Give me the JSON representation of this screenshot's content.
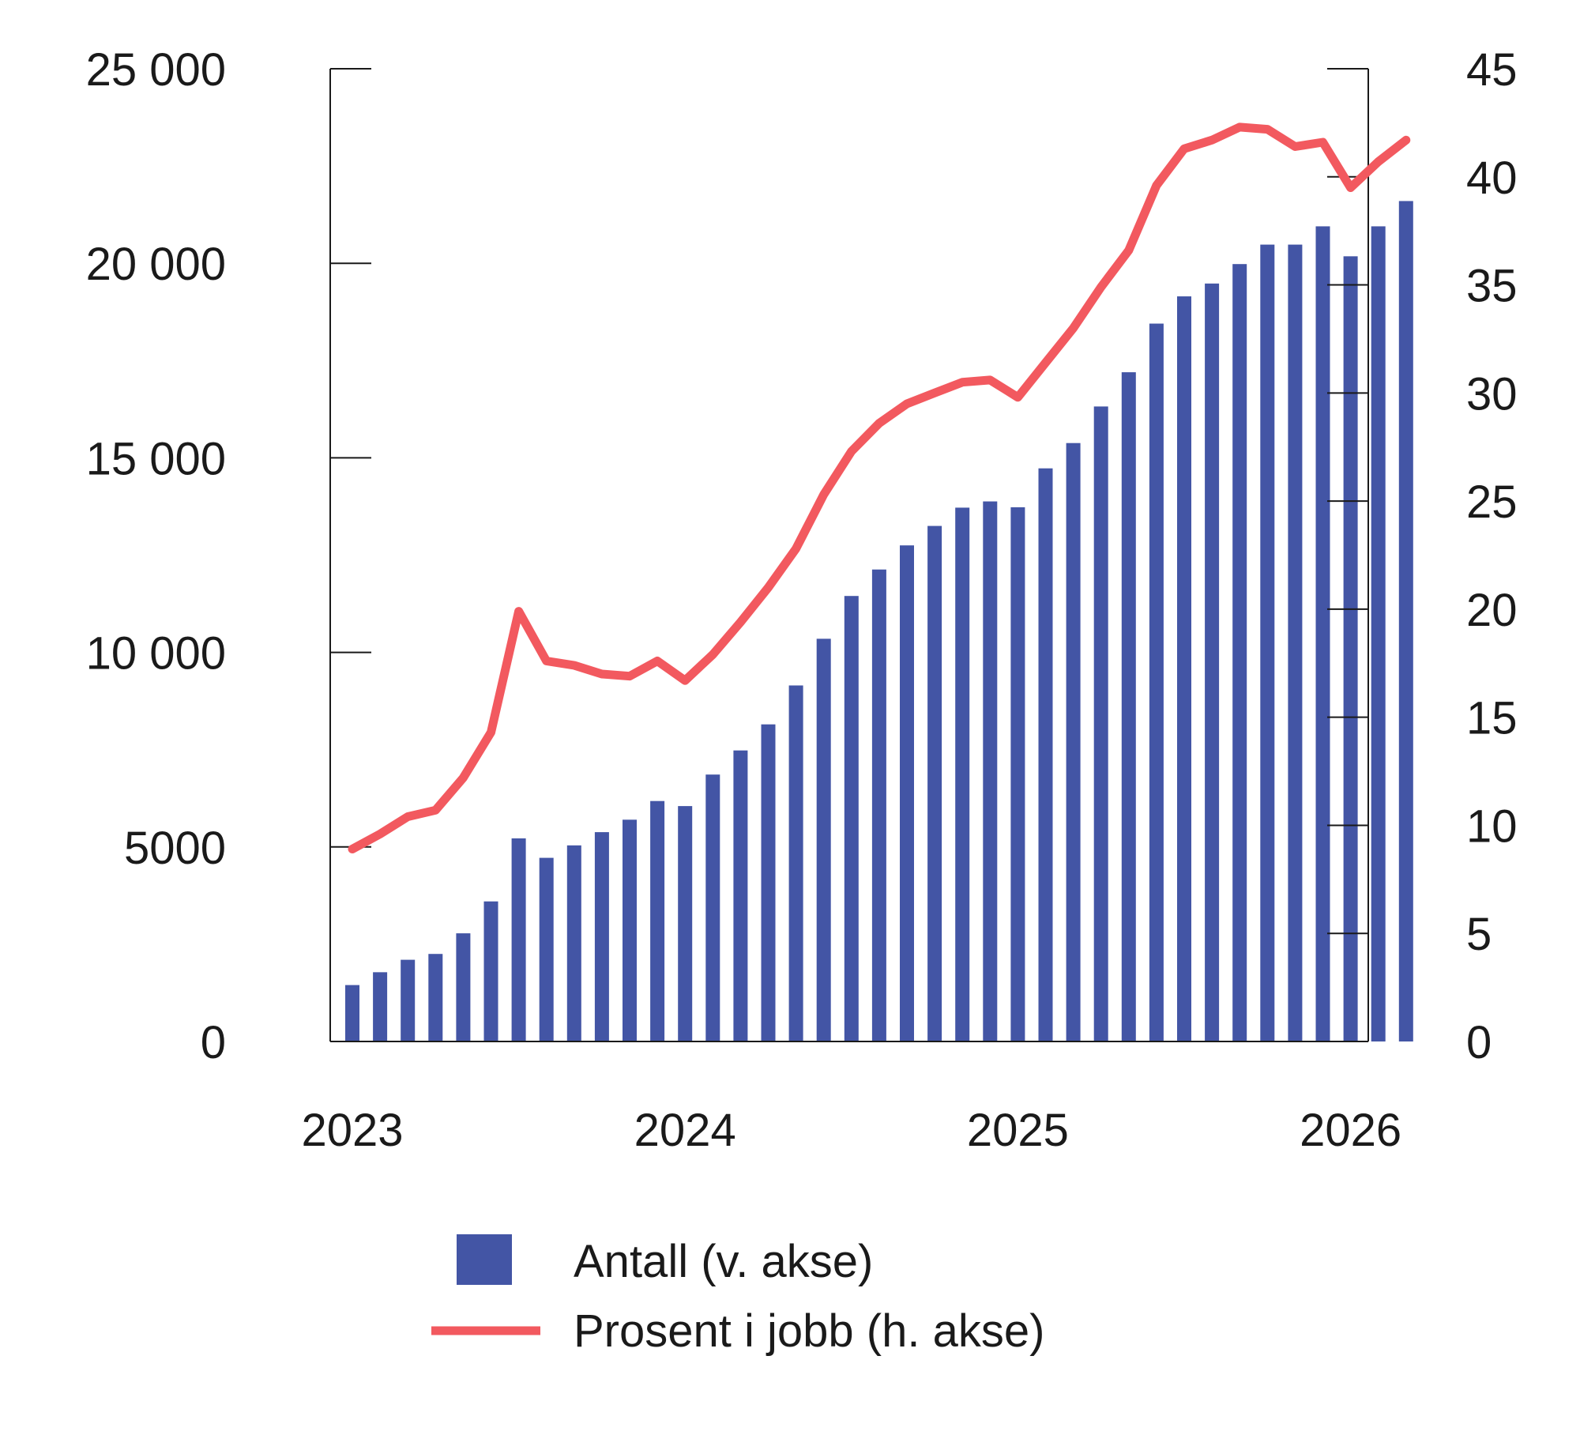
{
  "chart_data": {
    "type": "bar+line",
    "title": "",
    "x_tick_labels": [
      "2023",
      "2024",
      "2025",
      "2026"
    ],
    "left_axis": {
      "range": [
        0,
        25000
      ],
      "ticks": [
        0,
        5000,
        10000,
        15000,
        20000,
        25000
      ],
      "tick_labels": [
        "0",
        "5000",
        "10 000",
        "15 000",
        "20 000",
        "25 000"
      ]
    },
    "right_axis": {
      "range": [
        0,
        45
      ],
      "ticks": [
        0,
        5,
        10,
        15,
        20,
        25,
        30,
        35,
        40,
        45
      ],
      "tick_labels": [
        "0",
        "5",
        "10",
        "15",
        "20",
        "25",
        "30",
        "35",
        "40",
        "45"
      ]
    },
    "x": [
      "2023-01",
      "2023-02",
      "2023-03",
      "2023-04",
      "2023-05",
      "2023-06",
      "2023-07",
      "2023-08",
      "2023-09",
      "2023-10",
      "2023-11",
      "2023-12",
      "2024-01",
      "2024-02",
      "2024-03",
      "2024-04",
      "2024-05",
      "2024-06",
      "2024-07",
      "2024-08",
      "2024-09",
      "2024-10",
      "2024-11",
      "2024-12",
      "2025-01",
      "2025-02",
      "2025-03",
      "2025-04",
      "2025-05",
      "2025-06",
      "2025-07",
      "2025-08",
      "2025-09",
      "2025-10",
      "2025-11",
      "2025-12",
      "2026-01",
      "2026-02",
      "2026-03"
    ],
    "series": [
      {
        "name": "Antall (v. akse)",
        "type": "bar",
        "axis": "left",
        "color": "#4355a5",
        "values": [
          1450,
          1780,
          2100,
          2250,
          2780,
          3600,
          5220,
          4720,
          5040,
          5380,
          5700,
          6180,
          6050,
          6860,
          7480,
          8150,
          9150,
          10350,
          11450,
          12130,
          12750,
          13250,
          13720,
          13880,
          13730,
          14730,
          15380,
          16320,
          17200,
          18450,
          19150,
          19480,
          19980,
          20480,
          20480,
          20950,
          20180,
          20950,
          21600
        ]
      },
      {
        "name": "Prosent i jobb (h. akse)",
        "type": "line",
        "axis": "right",
        "color": "#f2595f",
        "values": [
          8.9,
          9.6,
          10.4,
          10.7,
          12.2,
          14.3,
          19.9,
          17.6,
          17.4,
          17.0,
          16.9,
          17.6,
          16.7,
          17.9,
          19.4,
          21.0,
          22.8,
          25.3,
          27.3,
          28.6,
          29.5,
          30.0,
          30.5,
          30.6,
          29.8,
          31.4,
          33.0,
          34.9,
          36.6,
          39.6,
          41.3,
          41.7,
          42.3,
          42.2,
          41.4,
          41.6,
          39.5,
          40.7,
          41.7
        ]
      }
    ],
    "legend": {
      "position": "bottom"
    },
    "grid": false
  }
}
